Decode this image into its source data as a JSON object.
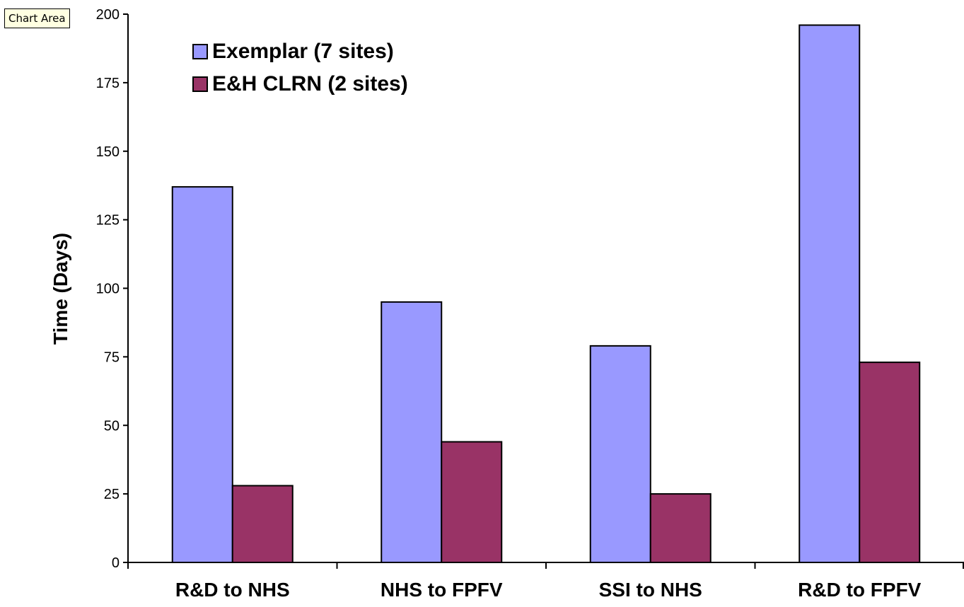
{
  "tooltip": "Chart Area",
  "chart_data": {
    "type": "bar",
    "title": "",
    "xlabel": "",
    "ylabel": "Time (Days)",
    "ylim": [
      0,
      200
    ],
    "yticks": [
      0,
      25,
      50,
      75,
      100,
      125,
      150,
      175,
      200
    ],
    "categories": [
      "R&D to NHS",
      "NHS to FPFV",
      "SSI to NHS",
      "R&D to FPFV"
    ],
    "series": [
      {
        "name": "Exemplar (7 sites)",
        "color": "#9999ff",
        "values": [
          137,
          95,
          79,
          196
        ]
      },
      {
        "name": "E&H CLRN (2 sites)",
        "color": "#993366",
        "values": [
          28,
          44,
          25,
          73
        ]
      }
    ],
    "legend_position": "top-left",
    "grid": false
  }
}
